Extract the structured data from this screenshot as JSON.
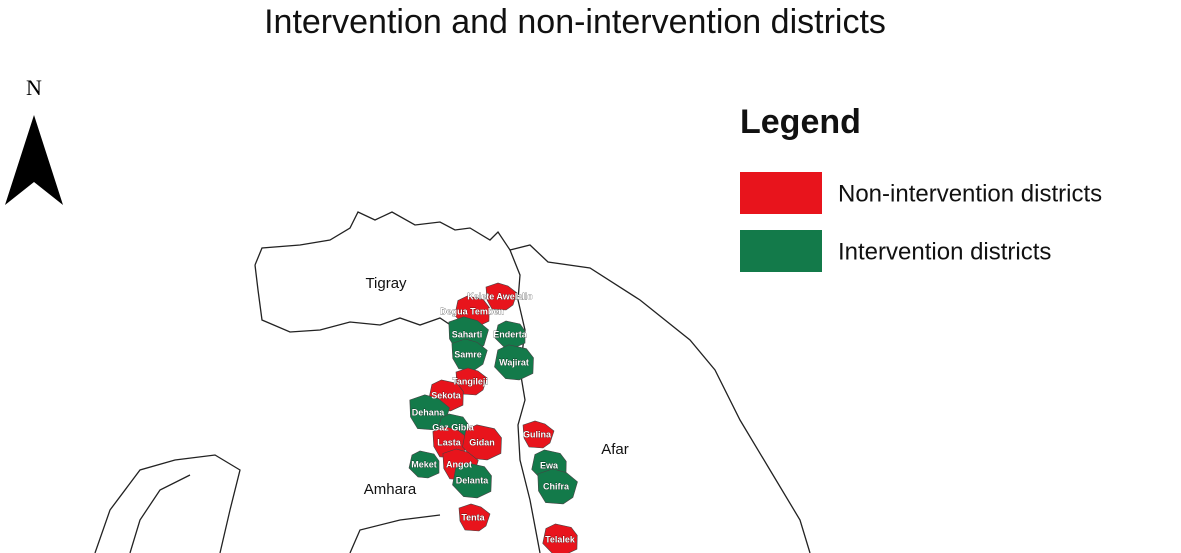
{
  "title": "Intervention and non-intervention districts",
  "north": "N",
  "legend": {
    "title": "Legend",
    "items": [
      {
        "label": "Non-intervention districts",
        "color": "#e8141c"
      },
      {
        "label": "Intervention districts",
        "color": "#137a4a"
      }
    ]
  },
  "regions": [
    "Tigray",
    "Afar",
    "Amhara"
  ],
  "districts": [
    {
      "name": "Kelete Awelallo",
      "group": 0
    },
    {
      "name": "Degua Temben",
      "group": 0
    },
    {
      "name": "Saharti",
      "group": 1
    },
    {
      "name": "Enderta",
      "group": 1
    },
    {
      "name": "Samre",
      "group": 1
    },
    {
      "name": "Wajirat",
      "group": 1
    },
    {
      "name": "Tangileji",
      "group": 0
    },
    {
      "name": "Sekota",
      "group": 0
    },
    {
      "name": "Dehana",
      "group": 1
    },
    {
      "name": "Gaz Gibla",
      "group": 1
    },
    {
      "name": "Lasta",
      "group": 0
    },
    {
      "name": "Gidan",
      "group": 0
    },
    {
      "name": "Gulina",
      "group": 0
    },
    {
      "name": "Ewa",
      "group": 1
    },
    {
      "name": "Chifra",
      "group": 1
    },
    {
      "name": "Meket",
      "group": 1
    },
    {
      "name": "Angot",
      "group": 0
    },
    {
      "name": "Delanta",
      "group": 1
    },
    {
      "name": "Tenta",
      "group": 0
    },
    {
      "name": "Telalek",
      "group": 0
    }
  ]
}
